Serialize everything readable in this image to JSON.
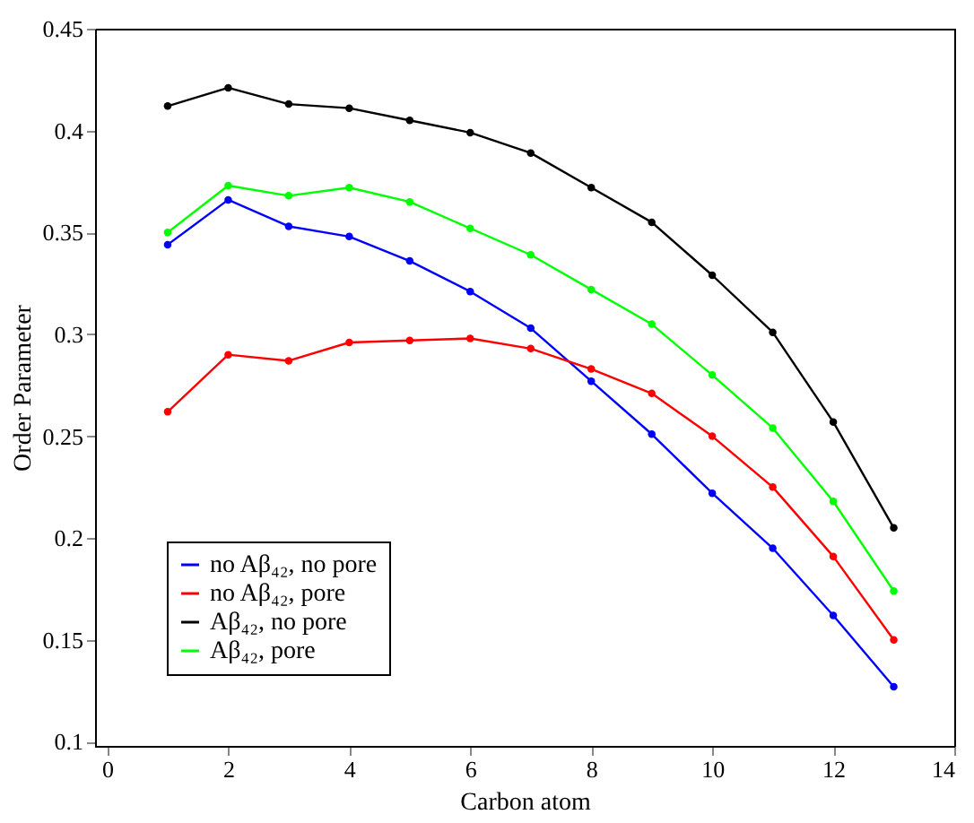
{
  "chart_data": {
    "type": "line",
    "xlabel": "Carbon atom",
    "ylabel": "Order Parameter",
    "x": [
      1,
      2,
      3,
      4,
      5,
      6,
      7,
      8,
      9,
      10,
      11,
      12,
      13
    ],
    "xlim": [
      -0.2,
      14
    ],
    "xticks": [
      0,
      2,
      4,
      6,
      8,
      10,
      12,
      14
    ],
    "ylim": [
      0.098,
      0.45
    ],
    "yticks": [
      0.1,
      0.15,
      0.2,
      0.25,
      0.3,
      0.35,
      0.4,
      0.45
    ],
    "grid": false,
    "legend": "bottom left",
    "marker": "circle",
    "line_style": "solid",
    "series": [
      {
        "name": "no Aβ₄₂, no pore",
        "color": "#0000ff",
        "values": [
          0.344,
          0.366,
          0.353,
          0.348,
          0.336,
          0.321,
          0.303,
          0.277,
          0.251,
          0.222,
          0.195,
          0.162,
          0.127
        ]
      },
      {
        "name": "no Aβ₄₂, pore",
        "color": "#ff0000",
        "values": [
          0.262,
          0.29,
          0.287,
          0.296,
          0.297,
          0.298,
          0.293,
          0.283,
          0.271,
          0.25,
          0.225,
          0.191,
          0.15
        ]
      },
      {
        "name": "Aβ₄₂, no pore",
        "color": "#000000",
        "values": [
          0.412,
          0.421,
          0.413,
          0.411,
          0.405,
          0.399,
          0.389,
          0.372,
          0.355,
          0.329,
          0.301,
          0.257,
          0.205
        ]
      },
      {
        "name": "Aβ₄₂, pore",
        "color": "#00ff00",
        "values": [
          0.35,
          0.373,
          0.368,
          0.372,
          0.365,
          0.352,
          0.339,
          0.322,
          0.305,
          0.28,
          0.254,
          0.218,
          0.174
        ]
      }
    ]
  }
}
